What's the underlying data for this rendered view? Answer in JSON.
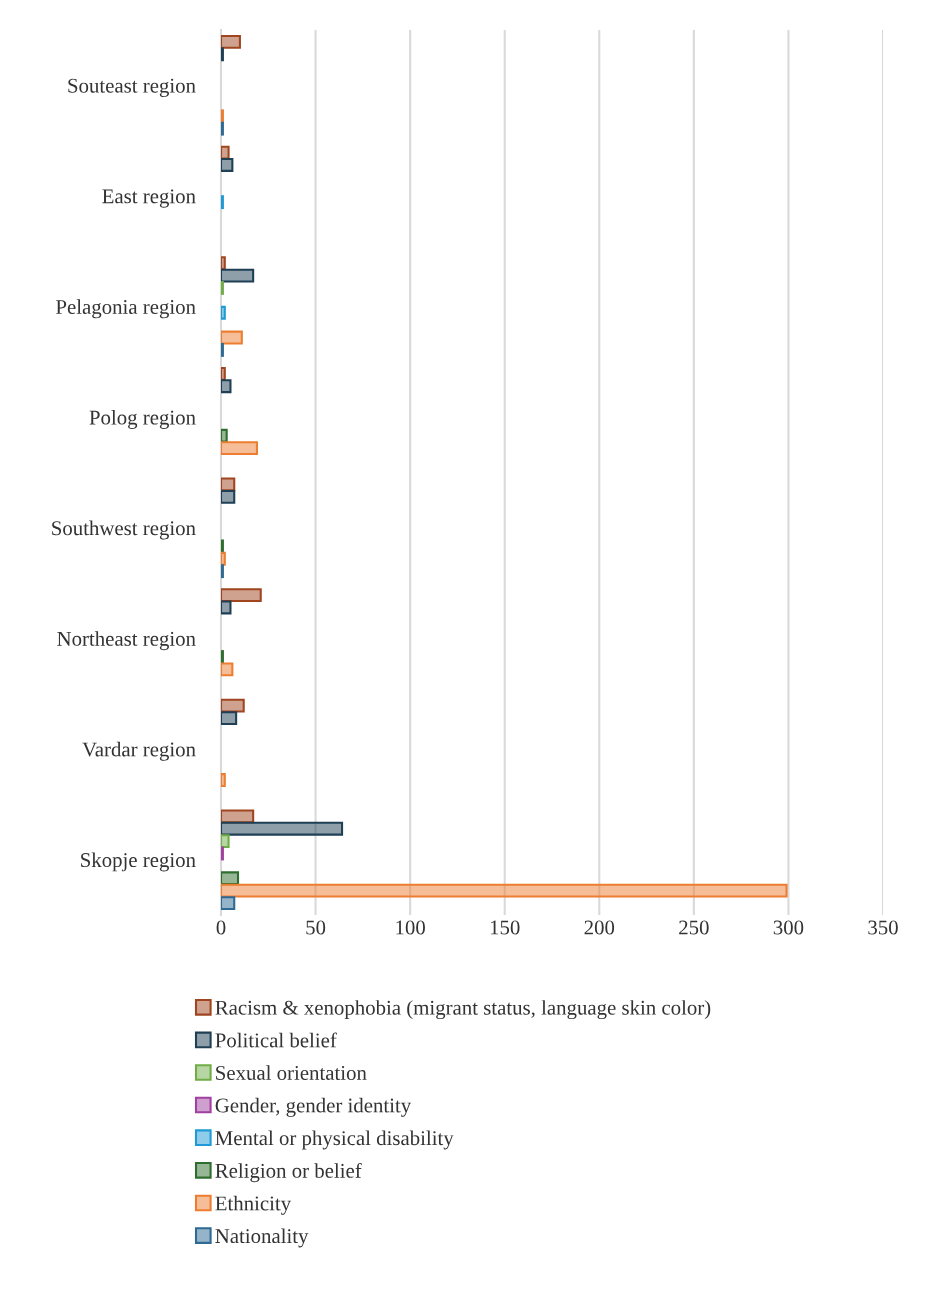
{
  "chart_data": {
    "type": "bar",
    "orientation": "horizontal",
    "categories": [
      "Souteast region",
      "East region",
      "Pelagonia region",
      "Polog region",
      "Southwest region",
      "Northeast region",
      "Vardar region",
      "Skopje region"
    ],
    "series": [
      {
        "name": "Racism & xenophobia (migrant status, language skin color)",
        "color": "#a0451f",
        "values": [
          10,
          4,
          2,
          2,
          7,
          21,
          12,
          17
        ]
      },
      {
        "name": "Political belief",
        "color": "#1f3f55",
        "values": [
          1,
          6,
          17,
          5,
          7,
          5,
          8,
          64
        ]
      },
      {
        "name": "Sexual orientation",
        "color": "#70ad47",
        "values": [
          0,
          0,
          1,
          0,
          0,
          0,
          0,
          4
        ]
      },
      {
        "name": "Gender, gender identity",
        "color": "#a040a0",
        "values": [
          0,
          0,
          0,
          0,
          0,
          0,
          0,
          1
        ]
      },
      {
        "name": "Mental or physical disability",
        "color": "#1e9ad6",
        "values": [
          0,
          1,
          2,
          0,
          0,
          0,
          0,
          0
        ]
      },
      {
        "name": "Religion or belief",
        "color": "#2e6e2e",
        "values": [
          0,
          0,
          0,
          3,
          1,
          1,
          0,
          9
        ]
      },
      {
        "name": "Ethnicity",
        "color": "#ed7d31",
        "values": [
          1,
          0,
          11,
          19,
          2,
          6,
          2,
          299
        ]
      },
      {
        "name": "Nationality",
        "color": "#2e6a94",
        "values": [
          1,
          0,
          1,
          0,
          1,
          0,
          0,
          7
        ]
      }
    ],
    "xlim": [
      0,
      350
    ],
    "xticks": [
      0,
      50,
      100,
      150,
      200,
      250,
      300,
      350
    ],
    "grid": "x",
    "legend": "bottom"
  }
}
